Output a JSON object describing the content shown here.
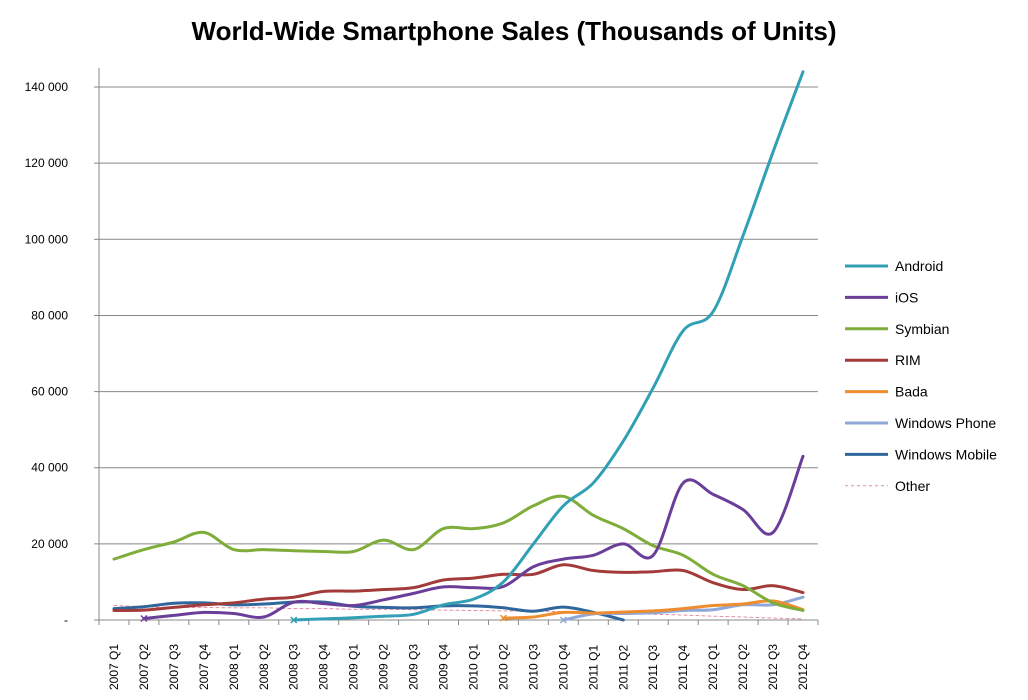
{
  "chart_data": {
    "type": "line",
    "title": "World-Wide Smartphone Sales (Thousands of Units)",
    "xlabel": "",
    "ylabel": "",
    "ylim": [
      0,
      145000
    ],
    "y_ticks": [
      0,
      20000,
      40000,
      60000,
      80000,
      100000,
      120000,
      140000
    ],
    "y_tick_labels": [
      "-",
      "20 000",
      "40 000",
      "60 000",
      "80 000",
      "100 000",
      "120 000",
      "140 000"
    ],
    "grid": "horizontal",
    "legend_position": "right",
    "categories": [
      "2007 Q1",
      "2007 Q2",
      "2007 Q3",
      "2007 Q4",
      "2008 Q1",
      "2008 Q2",
      "2008 Q3",
      "2008 Q4",
      "2009 Q1",
      "2009 Q2",
      "2009 Q3",
      "2009 Q4",
      "2010 Q1",
      "2010 Q2",
      "2010 Q3",
      "2010 Q4",
      "2011 Q1",
      "2011 Q2",
      "2011 Q3",
      "2011 Q4",
      "2012 Q1",
      "2012 Q2",
      "2012 Q3",
      "2012 Q4"
    ],
    "series": [
      {
        "name": "Android",
        "color": "#31a0b6",
        "dashed": false,
        "values": [
          null,
          null,
          null,
          null,
          null,
          null,
          0,
          300,
          600,
          1000,
          1500,
          4000,
          5500,
          10000,
          20000,
          30000,
          36000,
          47000,
          61000,
          76000,
          81000,
          101000,
          123000,
          144000
        ]
      },
      {
        "name": "iOS",
        "color": "#6b3f99",
        "dashed": false,
        "values": [
          null,
          400,
          1200,
          2000,
          1700,
          800,
          4700,
          4300,
          3800,
          5300,
          7000,
          8700,
          8500,
          8800,
          14000,
          16000,
          17000,
          20000,
          17000,
          36000,
          33000,
          29000,
          23000,
          43000
        ]
      },
      {
        "name": "Symbian",
        "color": "#7fad3a",
        "dashed": false,
        "values": [
          16000,
          18500,
          20500,
          23000,
          18500,
          18500,
          18200,
          18000,
          18000,
          21000,
          18500,
          24000,
          24000,
          25500,
          30000,
          32500,
          27500,
          24000,
          19500,
          17000,
          12000,
          9000,
          4500,
          2500
        ]
      },
      {
        "name": "RIM",
        "color": "#a43b3b",
        "dashed": false,
        "values": [
          2500,
          2600,
          3300,
          4000,
          4500,
          5500,
          6000,
          7500,
          7600,
          8000,
          8500,
          10500,
          11000,
          12000,
          12000,
          14500,
          13000,
          12500,
          12700,
          13000,
          9800,
          8000,
          9000,
          7200
        ]
      },
      {
        "name": "Bada",
        "color": "#ee8d2f",
        "dashed": false,
        "values": [
          null,
          null,
          null,
          null,
          null,
          null,
          null,
          null,
          null,
          null,
          null,
          null,
          null,
          500,
          800,
          2000,
          1800,
          2100,
          2400,
          3000,
          3800,
          4200,
          5000,
          2700
        ]
      },
      {
        "name": "Windows Phone",
        "color": "#8fa8d8",
        "dashed": false,
        "values": [
          null,
          null,
          null,
          null,
          null,
          null,
          null,
          null,
          null,
          null,
          null,
          null,
          null,
          null,
          null,
          0,
          1600,
          1700,
          1900,
          2500,
          2700,
          4000,
          4000,
          6000
        ]
      },
      {
        "name": "Windows Mobile",
        "color": "#2f679c",
        "dashed": false,
        "values": [
          3000,
          3500,
          4400,
          4500,
          4000,
          4200,
          4700,
          4700,
          3600,
          3300,
          3200,
          3700,
          3700,
          3200,
          2300,
          3400,
          2000,
          0,
          null,
          null,
          null,
          null,
          null,
          null
        ]
      },
      {
        "name": "Other",
        "color": "#e38fa0",
        "dashed": true,
        "values": [
          3800,
          3500,
          3300,
          3300,
          3200,
          3200,
          3000,
          3000,
          2800,
          2800,
          2700,
          2600,
          2500,
          2400,
          2300,
          2200,
          2000,
          1700,
          1500,
          1300,
          1000,
          800,
          500,
          300
        ]
      }
    ]
  }
}
